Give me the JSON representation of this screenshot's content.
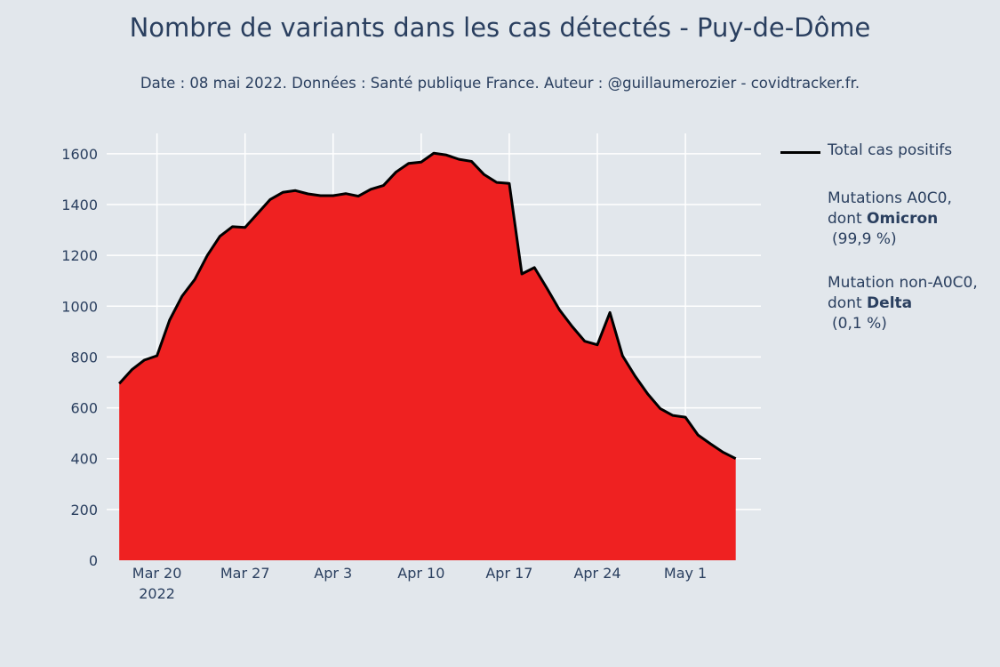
{
  "title": "Nombre de variants dans les cas détectés - Puy-de-Dôme",
  "subtitle": "Date : 08 mai 2022. Données : Santé publique France. Auteur : @guillaumerozier - covidtracker.fr.",
  "legend": {
    "total": {
      "label": "Total cas positifs",
      "color": "#000000"
    },
    "omicron": {
      "line1": "Mutations A0C0,",
      "line2_prefix": "dont ",
      "line2_bold": "Omicron",
      "line3": "(99,9 %)",
      "color": "#ef2121"
    },
    "delta": {
      "line1": "Mutation non-A0C0,",
      "line2_prefix": "dont ",
      "line2_bold": "Delta",
      "line3": "(0,1 %)",
      "color": "#a8a8a8"
    }
  },
  "chart_data": {
    "type": "area",
    "title": "Nombre de variants dans les cas détectés - Puy-de-Dôme",
    "xlabel": "",
    "ylabel": "",
    "ylim": [
      0,
      1680
    ],
    "yticks": [
      0,
      200,
      400,
      600,
      800,
      1000,
      1200,
      1400,
      1600
    ],
    "x_start_day": -4,
    "x_end_day": 48,
    "xticks": [
      {
        "day": 0,
        "label": "Mar 20",
        "sublabel": "2022"
      },
      {
        "day": 7,
        "label": "Mar 27",
        "sublabel": ""
      },
      {
        "day": 14,
        "label": "Apr 3",
        "sublabel": ""
      },
      {
        "day": 21,
        "label": "Apr 10",
        "sublabel": ""
      },
      {
        "day": 28,
        "label": "Apr 17",
        "sublabel": ""
      },
      {
        "day": 35,
        "label": "Apr 24",
        "sublabel": ""
      },
      {
        "day": 42,
        "label": "May 1",
        "sublabel": ""
      }
    ],
    "x_days": [
      -3,
      -2,
      -1,
      0,
      1,
      2,
      3,
      4,
      5,
      6,
      7,
      8,
      9,
      10,
      11,
      12,
      13,
      14,
      15,
      16,
      17,
      18,
      19,
      20,
      21,
      22,
      23,
      24,
      25,
      26,
      27,
      28,
      29,
      30,
      31,
      32,
      33,
      34,
      35,
      36,
      37,
      38,
      39,
      40,
      41,
      42,
      43,
      44,
      45,
      46
    ],
    "series": [
      {
        "name": "Total cas positifs",
        "color": "#000000",
        "values": [
          695,
          750,
          788,
          805,
          945,
          1040,
          1105,
          1200,
          1275,
          1313,
          1310,
          1365,
          1420,
          1448,
          1455,
          1442,
          1435,
          1435,
          1443,
          1433,
          1460,
          1475,
          1528,
          1562,
          1567,
          1602,
          1595,
          1578,
          1570,
          1518,
          1487,
          1483,
          1127,
          1152,
          1070,
          985,
          920,
          862,
          848,
          975,
          805,
          725,
          655,
          597,
          570,
          563,
          493,
          458,
          425,
          400
        ]
      },
      {
        "name": "Mutations A0C0, dont Omicron",
        "color": "#ef2121",
        "values": [
          695,
          750,
          788,
          805,
          945,
          1040,
          1105,
          1200,
          1275,
          1313,
          1310,
          1365,
          1420,
          1448,
          1455,
          1442,
          1435,
          1435,
          1443,
          1433,
          1460,
          1475,
          1528,
          1562,
          1567,
          1602,
          1595,
          1578,
          1570,
          1518,
          1487,
          1483,
          1127,
          1152,
          1070,
          985,
          920,
          862,
          848,
          975,
          805,
          725,
          655,
          597,
          570,
          563,
          493,
          458,
          425,
          400
        ]
      },
      {
        "name": "Mutation non-A0C0, dont Delta",
        "color": "#a8a8a8",
        "values": [
          0,
          0,
          0,
          0,
          0,
          0,
          0,
          0,
          0,
          0,
          0,
          0,
          0,
          0,
          0,
          0,
          0,
          0,
          0,
          0,
          0,
          0,
          0,
          0,
          0,
          0,
          0,
          0,
          0,
          0,
          0,
          0,
          0,
          0,
          0,
          0,
          0,
          0,
          0,
          0,
          0,
          0,
          0,
          0,
          0,
          0,
          0,
          0,
          0,
          0
        ]
      }
    ]
  }
}
